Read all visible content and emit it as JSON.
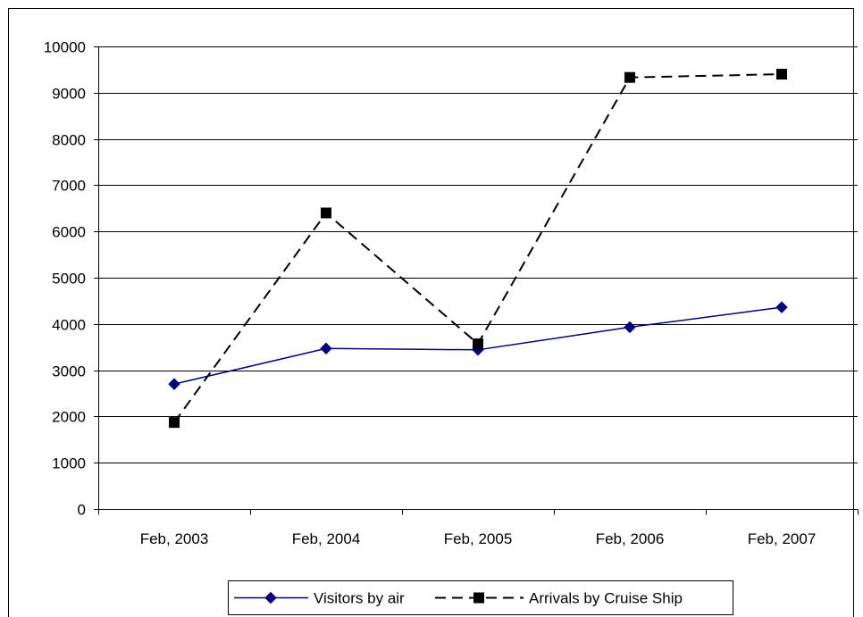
{
  "chart_data": {
    "type": "line",
    "title": "",
    "xlabel": "",
    "ylabel": "",
    "categories": [
      "Feb, 2003",
      "Feb, 2004",
      "Feb, 2005",
      "Feb, 2006",
      "Feb, 2007"
    ],
    "ylim": [
      0,
      10000
    ],
    "yticks": [
      0,
      1000,
      2000,
      3000,
      4000,
      5000,
      6000,
      7000,
      8000,
      9000,
      10000
    ],
    "grid": true,
    "legend_position": "bottom",
    "series": [
      {
        "name": "Visitors by air",
        "values": [
          2700,
          3470,
          3440,
          3930,
          4360
        ],
        "color": "#000080",
        "marker": "diamond",
        "line_style": "solid"
      },
      {
        "name": "Arrivals by Cruise Ship",
        "values": [
          1870,
          6400,
          3570,
          9330,
          9400
        ],
        "color": "#000000",
        "marker": "square",
        "line_style": "dashed"
      }
    ]
  }
}
